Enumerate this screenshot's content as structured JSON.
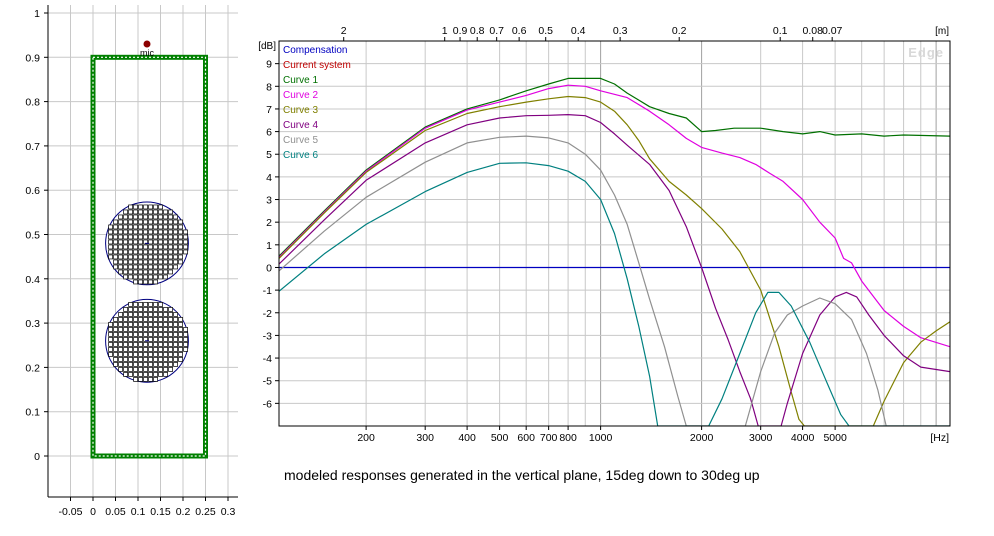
{
  "layout": {
    "x_ticks": [
      "-0.05",
      "0",
      "0.05",
      "0.1",
      "0.15",
      "0.2",
      "0.25",
      "0.3"
    ],
    "y_ticks": [
      "0",
      "0.1",
      "0.2",
      "0.3",
      "0.4",
      "0.5",
      "0.6",
      "0.7",
      "0.8",
      "0.9",
      "1"
    ],
    "mic_label": "mic",
    "colors": {
      "baffle": "#008000",
      "driver": "#000080",
      "mic": "#8b0000",
      "grid": "#c8c8c8"
    }
  },
  "caption": "modeled responses generated in the vertical plane, 15deg down to 30deg up",
  "chart_data": {
    "type": "line",
    "watermark": "Edge",
    "x_scale": "log",
    "xlim": [
      110,
      11000
    ],
    "ylim": [
      -7,
      10
    ],
    "y_unit": "[dB]",
    "x_unit": "[Hz]",
    "top_unit": "[m]",
    "x_ticks": [
      {
        "v": 200,
        "l": "200"
      },
      {
        "v": 300,
        "l": "300"
      },
      {
        "v": 400,
        "l": "400"
      },
      {
        "v": 500,
        "l": "500"
      },
      {
        "v": 600,
        "l": "600"
      },
      {
        "v": 700,
        "l": "700"
      },
      {
        "v": 800,
        "l": "800"
      },
      {
        "v": 1000,
        "l": "1000"
      },
      {
        "v": 2000,
        "l": "2000"
      },
      {
        "v": 3000,
        "l": "3000"
      },
      {
        "v": 4000,
        "l": "4000"
      },
      {
        "v": 5000,
        "l": "5000"
      }
    ],
    "y_ticks": [
      9,
      8,
      7,
      6,
      5,
      4,
      3,
      2,
      1,
      0,
      -1,
      -2,
      -3,
      -4,
      -5,
      -6
    ],
    "top_ticks": [
      {
        "v": 2,
        "l": "2"
      },
      {
        "v": 1,
        "l": "1"
      },
      {
        "v": 0.9,
        "l": "0.9"
      },
      {
        "v": 0.8,
        "l": "0.8"
      },
      {
        "v": 0.7,
        "l": "0.7"
      },
      {
        "v": 0.6,
        "l": "0.6"
      },
      {
        "v": 0.5,
        "l": "0.5"
      },
      {
        "v": 0.4,
        "l": "0.4"
      },
      {
        "v": 0.3,
        "l": "0.3"
      },
      {
        "v": 0.2,
        "l": "0.2"
      },
      {
        "v": 0.1,
        "l": "0.1"
      },
      {
        "v": 0.08,
        "l": "0.08"
      },
      {
        "v": 0.07,
        "l": "0.07"
      }
    ],
    "legend": [
      {
        "name": "Compensation",
        "color": "#0000c0"
      },
      {
        "name": "Current system",
        "color": "#c00000"
      },
      {
        "name": "Curve 1",
        "color": "#007000"
      },
      {
        "name": "Curve 2",
        "color": "#e000e0"
      },
      {
        "name": "Curve 3",
        "color": "#808000"
      },
      {
        "name": "Curve 4",
        "color": "#800080"
      },
      {
        "name": "Curve 5",
        "color": "#909090"
      },
      {
        "name": "Curve 6",
        "color": "#008080"
      }
    ],
    "series": [
      {
        "name": "Compensation",
        "color": "#0000c0",
        "points": [
          [
            110,
            0
          ],
          [
            11000,
            0
          ]
        ]
      },
      {
        "name": "Curve 1",
        "color": "#007000",
        "points": [
          [
            110,
            0.5
          ],
          [
            150,
            2.5
          ],
          [
            200,
            4.3
          ],
          [
            300,
            6.2
          ],
          [
            400,
            7.0
          ],
          [
            500,
            7.4
          ],
          [
            600,
            7.8
          ],
          [
            700,
            8.1
          ],
          [
            800,
            8.35
          ],
          [
            1000,
            8.35
          ],
          [
            1100,
            8.1
          ],
          [
            1200,
            7.7
          ],
          [
            1400,
            7.1
          ],
          [
            1600,
            6.8
          ],
          [
            1800,
            6.6
          ],
          [
            2000,
            6.0
          ],
          [
            2200,
            6.05
          ],
          [
            2500,
            6.15
          ],
          [
            3000,
            6.15
          ],
          [
            3500,
            6.0
          ],
          [
            4000,
            5.9
          ],
          [
            4500,
            6.0
          ],
          [
            5000,
            5.85
          ],
          [
            6000,
            5.9
          ],
          [
            7000,
            5.8
          ],
          [
            8000,
            5.85
          ],
          [
            11000,
            5.8
          ]
        ]
      },
      {
        "name": "Curve 2",
        "color": "#e000e0",
        "points": [
          [
            110,
            0.45
          ],
          [
            150,
            2.45
          ],
          [
            200,
            4.25
          ],
          [
            300,
            6.15
          ],
          [
            400,
            6.95
          ],
          [
            500,
            7.3
          ],
          [
            600,
            7.6
          ],
          [
            700,
            7.9
          ],
          [
            800,
            8.05
          ],
          [
            900,
            8.0
          ],
          [
            1000,
            7.8
          ],
          [
            1200,
            7.5
          ],
          [
            1400,
            6.9
          ],
          [
            1600,
            6.3
          ],
          [
            1800,
            5.7
          ],
          [
            2000,
            5.3
          ],
          [
            2300,
            5.05
          ],
          [
            2600,
            4.85
          ],
          [
            2900,
            4.55
          ],
          [
            3200,
            4.15
          ],
          [
            3500,
            3.8
          ],
          [
            4000,
            3.0
          ],
          [
            4500,
            2.0
          ],
          [
            5000,
            1.3
          ],
          [
            5300,
            0.4
          ],
          [
            5600,
            0.2
          ],
          [
            6000,
            -0.6
          ],
          [
            7000,
            -1.9
          ],
          [
            8000,
            -2.6
          ],
          [
            9000,
            -3.1
          ],
          [
            11000,
            -3.5
          ]
        ]
      },
      {
        "name": "Curve 3",
        "color": "#808000",
        "points": [
          [
            110,
            0.4
          ],
          [
            150,
            2.4
          ],
          [
            200,
            4.2
          ],
          [
            300,
            6.05
          ],
          [
            400,
            6.8
          ],
          [
            500,
            7.1
          ],
          [
            600,
            7.3
          ],
          [
            700,
            7.45
          ],
          [
            800,
            7.55
          ],
          [
            900,
            7.5
          ],
          [
            1000,
            7.3
          ],
          [
            1100,
            6.9
          ],
          [
            1200,
            6.3
          ],
          [
            1300,
            5.6
          ],
          [
            1400,
            4.8
          ],
          [
            1600,
            3.8
          ],
          [
            1800,
            3.2
          ],
          [
            2000,
            2.6
          ],
          [
            2300,
            1.7
          ],
          [
            2600,
            0.7
          ],
          [
            3000,
            -1.0
          ],
          [
            3400,
            -3.5
          ],
          [
            3700,
            -5.5
          ],
          [
            3900,
            -6.7
          ],
          [
            4050,
            -7
          ],
          [
            6500,
            -7
          ],
          [
            7000,
            -5.9
          ],
          [
            8000,
            -4.2
          ],
          [
            9000,
            -3.3
          ],
          [
            10000,
            -2.8
          ],
          [
            11000,
            -2.4
          ]
        ]
      },
      {
        "name": "Curve 4",
        "color": "#800080",
        "points": [
          [
            110,
            0.15
          ],
          [
            150,
            2.1
          ],
          [
            200,
            3.85
          ],
          [
            300,
            5.5
          ],
          [
            400,
            6.3
          ],
          [
            500,
            6.6
          ],
          [
            600,
            6.7
          ],
          [
            700,
            6.72
          ],
          [
            800,
            6.75
          ],
          [
            900,
            6.7
          ],
          [
            1000,
            6.4
          ],
          [
            1100,
            5.9
          ],
          [
            1200,
            5.4
          ],
          [
            1400,
            4.55
          ],
          [
            1600,
            3.4
          ],
          [
            1800,
            1.8
          ],
          [
            2000,
            0
          ],
          [
            2200,
            -1.8
          ],
          [
            2400,
            -3.2
          ],
          [
            2600,
            -4.6
          ],
          [
            2800,
            -5.8
          ],
          [
            2950,
            -7
          ],
          [
            3450,
            -7
          ],
          [
            3600,
            -6.0
          ],
          [
            4000,
            -3.8
          ],
          [
            4500,
            -2.1
          ],
          [
            5000,
            -1.3
          ],
          [
            5400,
            -1.1
          ],
          [
            5800,
            -1.3
          ],
          [
            6300,
            -2.1
          ],
          [
            7000,
            -3.0
          ],
          [
            8000,
            -3.9
          ],
          [
            9000,
            -4.4
          ],
          [
            11000,
            -4.6
          ]
        ]
      },
      {
        "name": "Curve 5",
        "color": "#909090",
        "points": [
          [
            110,
            -0.15
          ],
          [
            150,
            1.6
          ],
          [
            200,
            3.1
          ],
          [
            300,
            4.65
          ],
          [
            400,
            5.5
          ],
          [
            500,
            5.75
          ],
          [
            600,
            5.8
          ],
          [
            700,
            5.72
          ],
          [
            800,
            5.5
          ],
          [
            900,
            5.0
          ],
          [
            1000,
            4.3
          ],
          [
            1100,
            3.2
          ],
          [
            1200,
            1.9
          ],
          [
            1300,
            0.2
          ],
          [
            1400,
            -1.4
          ],
          [
            1550,
            -3.5
          ],
          [
            1700,
            -5.7
          ],
          [
            1800,
            -7
          ],
          [
            2700,
            -7
          ],
          [
            3000,
            -4.6
          ],
          [
            3300,
            -2.9
          ],
          [
            3600,
            -2.1
          ],
          [
            4000,
            -1.7
          ],
          [
            4500,
            -1.35
          ],
          [
            5000,
            -1.6
          ],
          [
            5600,
            -2.3
          ],
          [
            6200,
            -3.8
          ],
          [
            6700,
            -5.4
          ],
          [
            7100,
            -7
          ],
          [
            11000,
            -7
          ]
        ]
      },
      {
        "name": "Curve 6",
        "color": "#008080",
        "points": [
          [
            110,
            -1.05
          ],
          [
            150,
            0.6
          ],
          [
            200,
            1.9
          ],
          [
            300,
            3.35
          ],
          [
            400,
            4.2
          ],
          [
            500,
            4.6
          ],
          [
            600,
            4.62
          ],
          [
            700,
            4.5
          ],
          [
            800,
            4.25
          ],
          [
            900,
            3.8
          ],
          [
            1000,
            3.0
          ],
          [
            1100,
            1.5
          ],
          [
            1200,
            -0.5
          ],
          [
            1300,
            -2.6
          ],
          [
            1400,
            -4.8
          ],
          [
            1480,
            -7
          ],
          [
            2100,
            -7
          ],
          [
            2300,
            -5.8
          ],
          [
            2600,
            -3.8
          ],
          [
            2900,
            -2.0
          ],
          [
            3150,
            -1.1
          ],
          [
            3400,
            -1.1
          ],
          [
            3700,
            -1.7
          ],
          [
            4200,
            -3.3
          ],
          [
            4700,
            -5.0
          ],
          [
            5200,
            -6.5
          ],
          [
            5500,
            -7
          ],
          [
            11000,
            -7
          ]
        ]
      },
      {
        "name": "Current system",
        "color": "#c00000",
        "points": []
      }
    ]
  }
}
